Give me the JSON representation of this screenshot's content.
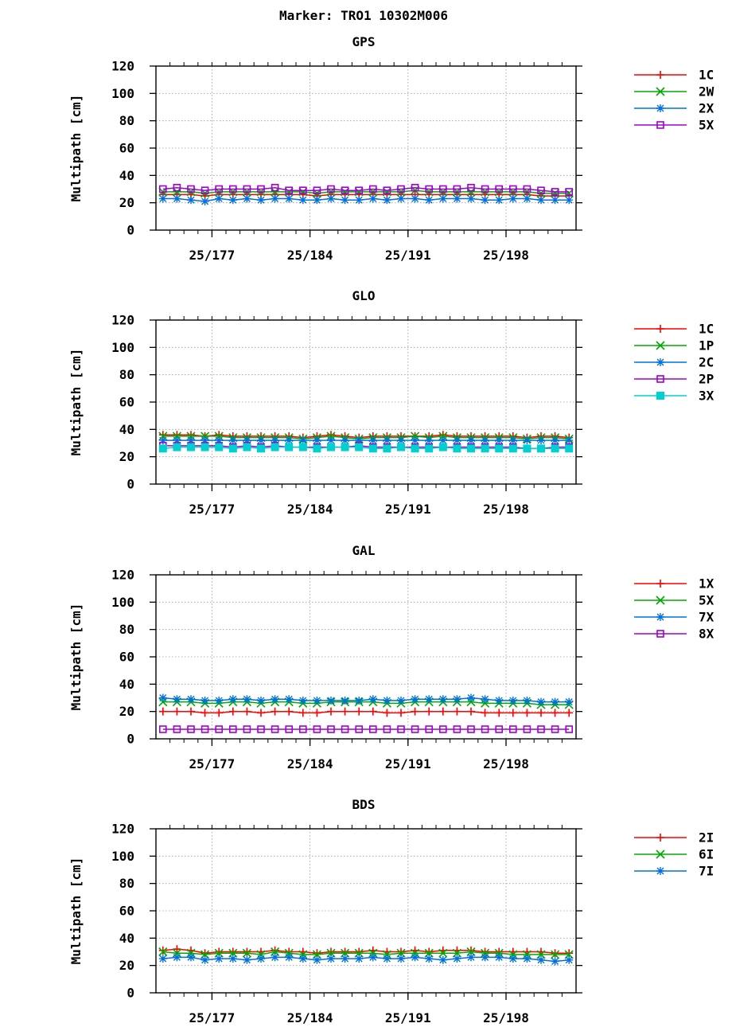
{
  "title": "Marker: TRO1 10302M006",
  "chart_data": [
    {
      "type": "line",
      "title": "GPS",
      "ylabel": "Multipath [cm]",
      "xlabel": "",
      "ylim": [
        0,
        120
      ],
      "yticks": [
        0,
        20,
        40,
        60,
        80,
        100,
        120
      ],
      "x_range_doy": [
        173,
        203
      ],
      "xtick_labels": [
        "25/177",
        "25/184",
        "25/191",
        "25/198"
      ],
      "xtick_doy": [
        177,
        184,
        191,
        198
      ],
      "grid": true,
      "legend_position": "top-right outside",
      "x": [
        173,
        174,
        175,
        176,
        177,
        178,
        179,
        180,
        181,
        182,
        183,
        184,
        185,
        186,
        187,
        188,
        189,
        190,
        191,
        192,
        193,
        194,
        195,
        196,
        197,
        198,
        199,
        200,
        201,
        202
      ],
      "series": [
        {
          "name": "1C",
          "color": "#ff0000",
          "marker": "plus",
          "values": [
            26,
            26,
            26,
            25,
            26,
            26,
            26,
            26,
            26,
            26,
            26,
            25,
            26,
            26,
            26,
            26,
            26,
            26,
            26,
            26,
            26,
            26,
            26,
            26,
            26,
            26,
            26,
            25,
            25,
            25
          ]
        },
        {
          "name": "2W",
          "color": "#00aa00",
          "marker": "cross",
          "values": [
            28,
            28,
            28,
            27,
            28,
            28,
            28,
            28,
            28,
            28,
            28,
            27,
            28,
            28,
            28,
            28,
            28,
            28,
            29,
            28,
            28,
            28,
            28,
            28,
            28,
            28,
            28,
            27,
            27,
            27
          ]
        },
        {
          "name": "2X",
          "color": "#0070e0",
          "marker": "star",
          "values": [
            23,
            23,
            22,
            21,
            23,
            22,
            23,
            22,
            23,
            23,
            22,
            22,
            23,
            22,
            22,
            23,
            22,
            23,
            23,
            22,
            23,
            23,
            23,
            22,
            22,
            23,
            23,
            22,
            22,
            22
          ]
        },
        {
          "name": "5X",
          "color": "#a000d0",
          "marker": "square",
          "values": [
            30,
            31,
            30,
            29,
            30,
            30,
            30,
            30,
            31,
            29,
            29,
            29,
            30,
            29,
            29,
            30,
            29,
            30,
            31,
            30,
            30,
            30,
            31,
            30,
            30,
            30,
            30,
            29,
            28,
            28
          ]
        }
      ]
    },
    {
      "type": "line",
      "title": "GLO",
      "ylabel": "Multipath [cm]",
      "xlabel": "",
      "ylim": [
        0,
        120
      ],
      "yticks": [
        0,
        20,
        40,
        60,
        80,
        100,
        120
      ],
      "x_range_doy": [
        173,
        203
      ],
      "xtick_labels": [
        "25/177",
        "25/184",
        "25/191",
        "25/198"
      ],
      "xtick_doy": [
        177,
        184,
        191,
        198
      ],
      "grid": true,
      "legend_position": "top-right outside",
      "x": [
        173,
        174,
        175,
        176,
        177,
        178,
        179,
        180,
        181,
        182,
        183,
        184,
        185,
        186,
        187,
        188,
        189,
        190,
        191,
        192,
        193,
        194,
        195,
        196,
        197,
        198,
        199,
        200,
        201,
        202
      ],
      "series": [
        {
          "name": "1C",
          "color": "#ff0000",
          "marker": "plus",
          "values": [
            36,
            36,
            36,
            35,
            36,
            35,
            35,
            35,
            35,
            35,
            34,
            35,
            36,
            35,
            34,
            35,
            35,
            35,
            35,
            35,
            36,
            35,
            35,
            35,
            35,
            35,
            34,
            35,
            35,
            34
          ]
        },
        {
          "name": "1P",
          "color": "#00aa00",
          "marker": "cross",
          "values": [
            35,
            35,
            35,
            35,
            35,
            34,
            34,
            34,
            34,
            34,
            33,
            34,
            35,
            34,
            33,
            34,
            34,
            34,
            35,
            34,
            35,
            34,
            34,
            34,
            34,
            34,
            33,
            34,
            34,
            33
          ]
        },
        {
          "name": "2C",
          "color": "#0070e0",
          "marker": "star",
          "values": [
            32,
            32,
            32,
            32,
            32,
            32,
            32,
            32,
            32,
            32,
            32,
            32,
            32,
            32,
            32,
            32,
            32,
            32,
            32,
            32,
            32,
            32,
            32,
            32,
            32,
            32,
            32,
            32,
            32,
            32
          ]
        },
        {
          "name": "2P",
          "color": "#a000d0",
          "marker": "square",
          "values": [
            28,
            28,
            28,
            28,
            28,
            27,
            28,
            27,
            28,
            27,
            27,
            27,
            27,
            27,
            28,
            27,
            27,
            27,
            27,
            27,
            27,
            27,
            27,
            27,
            27,
            27,
            26,
            26,
            27,
            27
          ]
        },
        {
          "name": "3X",
          "color": "#00d0d0",
          "marker": "filled-square",
          "values": [
            26,
            27,
            27,
            27,
            27,
            26,
            27,
            26,
            27,
            27,
            27,
            26,
            27,
            27,
            27,
            26,
            26,
            27,
            26,
            26,
            27,
            26,
            26,
            26,
            26,
            26,
            26,
            26,
            26,
            26
          ]
        }
      ]
    },
    {
      "type": "line",
      "title": "GAL",
      "ylabel": "Multipath [cm]",
      "xlabel": "",
      "ylim": [
        0,
        120
      ],
      "yticks": [
        0,
        20,
        40,
        60,
        80,
        100,
        120
      ],
      "x_range_doy": [
        173,
        203
      ],
      "xtick_labels": [
        "25/177",
        "25/184",
        "25/191",
        "25/198"
      ],
      "xtick_doy": [
        177,
        184,
        191,
        198
      ],
      "grid": true,
      "legend_position": "top-right outside",
      "x": [
        173,
        174,
        175,
        176,
        177,
        178,
        179,
        180,
        181,
        182,
        183,
        184,
        185,
        186,
        187,
        188,
        189,
        190,
        191,
        192,
        193,
        194,
        195,
        196,
        197,
        198,
        199,
        200,
        201,
        202
      ],
      "series": [
        {
          "name": "1X",
          "color": "#ff0000",
          "marker": "plus",
          "values": [
            20,
            20,
            20,
            19,
            19,
            20,
            20,
            19,
            20,
            20,
            19,
            19,
            20,
            20,
            20,
            20,
            19,
            19,
            20,
            20,
            20,
            20,
            20,
            19,
            19,
            19,
            19,
            19,
            19,
            19
          ]
        },
        {
          "name": "5X",
          "color": "#00aa00",
          "marker": "cross",
          "values": [
            27,
            27,
            27,
            26,
            26,
            27,
            27,
            26,
            27,
            27,
            26,
            26,
            27,
            27,
            27,
            27,
            26,
            26,
            27,
            27,
            27,
            27,
            27,
            26,
            26,
            26,
            26,
            25,
            25,
            25
          ]
        },
        {
          "name": "7X",
          "color": "#0070e0",
          "marker": "star",
          "values": [
            30,
            29,
            29,
            28,
            28,
            29,
            29,
            28,
            29,
            29,
            28,
            28,
            28,
            28,
            28,
            29,
            28,
            28,
            29,
            29,
            29,
            29,
            30,
            29,
            28,
            28,
            28,
            27,
            27,
            27
          ]
        },
        {
          "name": "8X",
          "color": "#a000d0",
          "marker": "square",
          "values": [
            7,
            7,
            7,
            7,
            7,
            7,
            7,
            7,
            7,
            7,
            7,
            7,
            7,
            7,
            7,
            7,
            7,
            7,
            7,
            7,
            7,
            7,
            7,
            7,
            7,
            7,
            7,
            7,
            7,
            7
          ]
        }
      ]
    },
    {
      "type": "line",
      "title": "BDS",
      "ylabel": "Multipath [cm]",
      "xlabel": "",
      "ylim": [
        0,
        120
      ],
      "yticks": [
        0,
        20,
        40,
        60,
        80,
        100,
        120
      ],
      "x_range_doy": [
        173,
        203
      ],
      "xtick_labels": [
        "25/177",
        "25/184",
        "25/191",
        "25/198"
      ],
      "xtick_doy": [
        177,
        184,
        191,
        198
      ],
      "grid": true,
      "legend_position": "top-right outside",
      "x": [
        173,
        174,
        175,
        176,
        177,
        178,
        179,
        180,
        181,
        182,
        183,
        184,
        185,
        186,
        187,
        188,
        189,
        190,
        191,
        192,
        193,
        194,
        195,
        196,
        197,
        198,
        199,
        200,
        201,
        202
      ],
      "series": [
        {
          "name": "2I",
          "color": "#ff0000",
          "marker": "plus",
          "values": [
            31,
            32,
            31,
            29,
            30,
            30,
            30,
            30,
            31,
            30,
            30,
            29,
            30,
            30,
            30,
            31,
            30,
            30,
            31,
            30,
            31,
            31,
            31,
            30,
            30,
            30,
            30,
            30,
            29,
            29
          ]
        },
        {
          "name": "6I",
          "color": "#00aa00",
          "marker": "cross",
          "values": [
            30,
            29,
            29,
            28,
            29,
            29,
            29,
            28,
            30,
            29,
            28,
            28,
            29,
            29,
            29,
            29,
            28,
            29,
            29,
            29,
            29,
            29,
            30,
            29,
            29,
            28,
            28,
            28,
            28,
            28
          ]
        },
        {
          "name": "7I",
          "color": "#0070e0",
          "marker": "star",
          "values": [
            25,
            26,
            26,
            24,
            25,
            25,
            24,
            25,
            26,
            26,
            25,
            24,
            25,
            25,
            25,
            26,
            25,
            25,
            26,
            25,
            24,
            25,
            26,
            26,
            26,
            25,
            25,
            24,
            23,
            24
          ]
        }
      ]
    }
  ]
}
